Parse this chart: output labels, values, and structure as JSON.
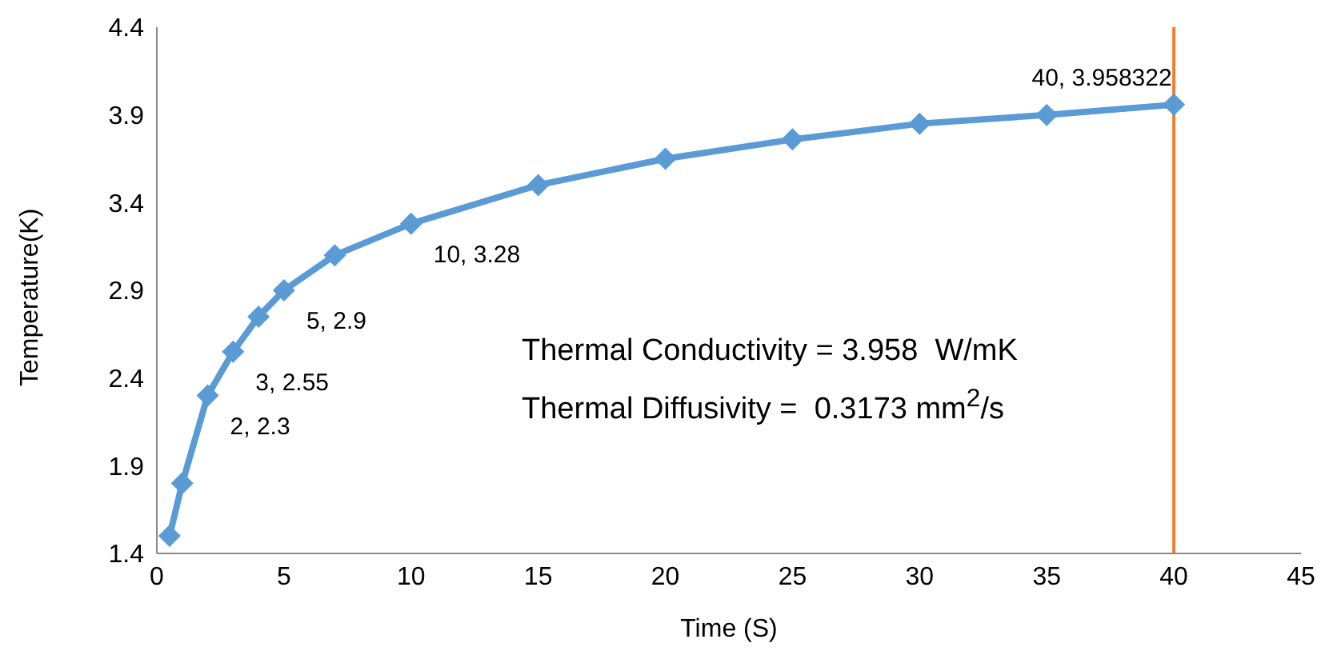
{
  "chart_data": {
    "type": "line",
    "xlabel": "Time (S)",
    "ylabel": "Temperature(K)",
    "x": [
      0.5,
      1,
      2,
      3,
      4,
      5,
      7,
      10,
      15,
      20,
      25,
      30,
      35,
      40
    ],
    "series": [
      {
        "color": "#5b9bd5",
        "values": [
          1.5,
          1.8,
          2.3,
          2.55,
          2.75,
          2.9,
          3.1,
          3.28,
          3.5,
          3.65,
          3.76,
          3.85,
          3.9,
          3.958322
        ],
        "value_labels": [
          null,
          null,
          "2, 2.3",
          "3, 2.55",
          null,
          "5, 2.9",
          null,
          "10, 3.28",
          null,
          null,
          null,
          null,
          null,
          "40, 3.958322"
        ]
      }
    ],
    "xlim": [
      0,
      45
    ],
    "xticks": [
      0,
      5,
      10,
      15,
      20,
      25,
      30,
      35,
      40,
      45
    ],
    "ylim": [
      1.4,
      4.4
    ],
    "yticks": [
      1.4,
      1.9,
      2.4,
      2.9,
      3.4,
      3.9,
      4.4
    ],
    "grid": false,
    "legend": false,
    "marker": "diamond",
    "line_style": "solid",
    "ref_lines": [
      {
        "axis": "x",
        "value": 40,
        "color": "#ed7d31"
      }
    ],
    "annotations": [
      "Thermal Conductivity = 3.958  W/mK",
      "Thermal Diffusivity =  0.3173 mm$^{2}$/s"
    ]
  }
}
